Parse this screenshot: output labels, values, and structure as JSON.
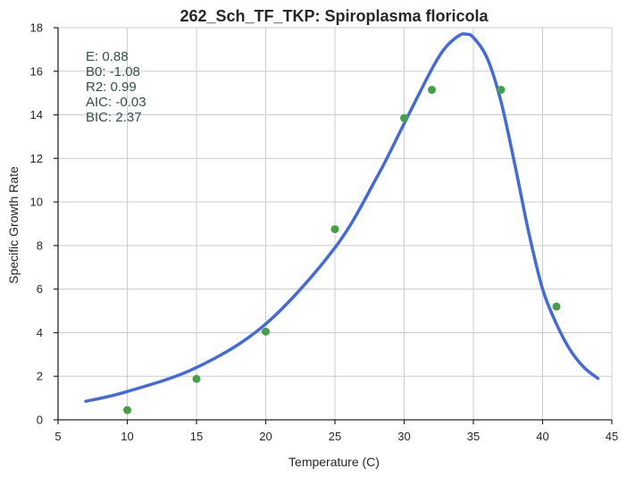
{
  "chart_data": {
    "type": "line",
    "title": "262_Sch_TF_TKP: Spiroplasma floricola",
    "xlabel": "Temperature (C)",
    "ylabel": "Specific Growth Rate",
    "xlim": [
      5,
      45
    ],
    "ylim": [
      0,
      18
    ],
    "xticks": [
      5,
      10,
      15,
      20,
      25,
      30,
      35,
      40,
      45
    ],
    "yticks": [
      0,
      2,
      4,
      6,
      8,
      10,
      12,
      14,
      16,
      18
    ],
    "grid": true,
    "colors": {
      "points": "#43a047",
      "curve": "#4169e1"
    },
    "points": {
      "x": [
        10,
        15,
        20,
        25,
        30,
        32,
        37,
        41
      ],
      "y": [
        0.45,
        1.88,
        4.05,
        8.75,
        13.85,
        15.15,
        15.15,
        5.2
      ]
    },
    "fit_curve": {
      "x": [
        7,
        10,
        15,
        20,
        25,
        28,
        30,
        32,
        33,
        34,
        34.5,
        35,
        36,
        37,
        38,
        39,
        40,
        41,
        42,
        43,
        44
      ],
      "y": [
        0.85,
        1.3,
        2.4,
        4.4,
        7.9,
        11.1,
        13.6,
        16.1,
        17.1,
        17.65,
        17.7,
        17.55,
        16.6,
        14.6,
        11.7,
        8.6,
        6.0,
        4.4,
        3.2,
        2.4,
        1.9
      ]
    },
    "stats": [
      {
        "label": "E:",
        "value": "0.88"
      },
      {
        "label": "B0:",
        "value": "-1.08"
      },
      {
        "label": "R2:",
        "value": "0.99"
      },
      {
        "label": "AIC:",
        "value": "-0.03"
      },
      {
        "label": "BIC:",
        "value": "2.37"
      }
    ]
  }
}
